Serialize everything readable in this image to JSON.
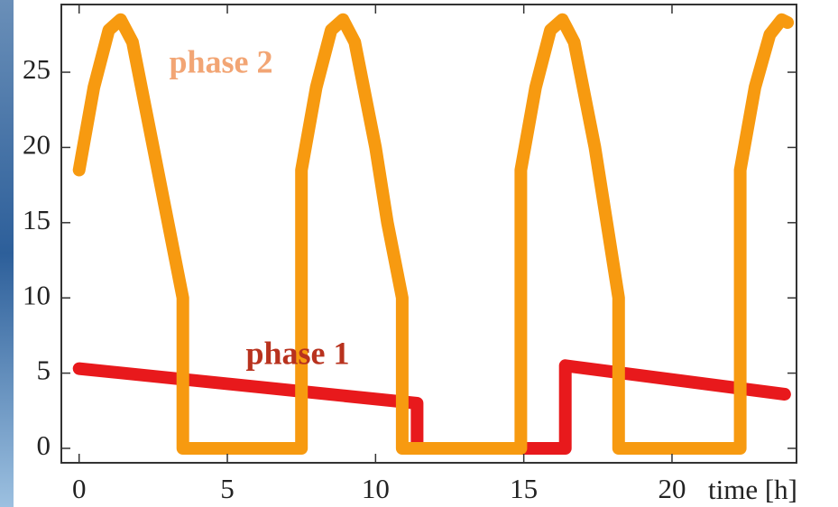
{
  "chart_data": {
    "type": "line",
    "x_label": "time [h]",
    "xlim": [
      -0.6,
      24.2
    ],
    "ylim": [
      -0.96,
      29.5
    ],
    "xticks": [
      0,
      5,
      10,
      15,
      20
    ],
    "yticks": [
      0,
      5,
      10,
      15,
      20,
      25
    ],
    "annotations": [
      {
        "text": "phase 2",
        "color": "#f2a574"
      },
      {
        "text": "phase 1",
        "color": "#b8321e"
      }
    ],
    "series": [
      {
        "name": "phase 1",
        "color": "#e8191c",
        "x": [
          0,
          11.4,
          11.4,
          16.4,
          16.4,
          23.8
        ],
        "values": [
          5.3,
          3.0,
          0,
          0,
          5.5,
          3.6
        ]
      },
      {
        "name": "phase 2",
        "color": "#f79a10",
        "x": [
          0,
          0.5,
          1.0,
          1.4,
          1.8,
          2.5,
          3.0,
          3.5,
          3.5,
          7.5,
          7.5,
          8.0,
          8.5,
          8.9,
          9.3,
          10.0,
          10.4,
          10.9,
          10.9,
          14.9,
          14.9,
          15.4,
          15.9,
          16.3,
          16.7,
          17.4,
          17.8,
          18.2,
          18.2,
          22.3,
          22.3,
          22.8,
          23.3,
          23.7,
          23.9
        ],
        "values": [
          18.5,
          24,
          27.8,
          28.5,
          27,
          20,
          15,
          10,
          0,
          0,
          18.5,
          24,
          27.8,
          28.5,
          27,
          20,
          15,
          10,
          0,
          0,
          18.5,
          24,
          27.8,
          28.5,
          27,
          20,
          15,
          10,
          0,
          0,
          18.5,
          24,
          27.5,
          28.5,
          28.3
        ]
      }
    ]
  }
}
